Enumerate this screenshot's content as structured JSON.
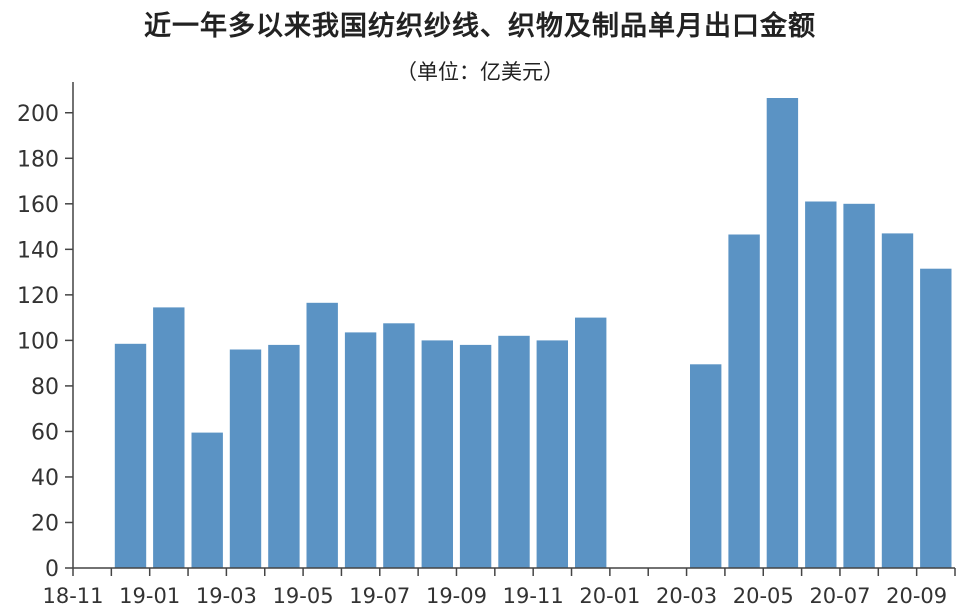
{
  "chart_data": {
    "type": "bar",
    "title": "近一年多以来我国纺织纱线、织物及制品单月出口金额",
    "subtitle": "（单位：亿美元）",
    "categories": [
      "18-11",
      "18-12",
      "19-01",
      "19-02",
      "19-03",
      "19-04",
      "19-05",
      "19-06",
      "19-07",
      "19-08",
      "19-09",
      "19-10",
      "19-11",
      "19-12",
      "20-01",
      "20-02",
      "20-03",
      "20-04",
      "20-05",
      "20-06",
      "20-07",
      "20-08",
      "20-09"
    ],
    "x_tick_labels": [
      "18-11",
      "19-01",
      "19-03",
      "19-05",
      "19-07",
      "19-09",
      "19-11",
      "20-01",
      "20-03",
      "20-05",
      "20-07",
      "20-09"
    ],
    "values": [
      null,
      98.5,
      114.5,
      59.5,
      96,
      98,
      116.5,
      103.5,
      107.5,
      100,
      98,
      102,
      100,
      110,
      null,
      null,
      89.5,
      146.5,
      206.5,
      161,
      160,
      147,
      131.5
    ],
    "ylim": [
      0,
      210
    ],
    "yticks": [
      0,
      20,
      40,
      60,
      80,
      100,
      120,
      140,
      160,
      180,
      200
    ],
    "bar_color": "#5b93c4",
    "grid": false
  }
}
